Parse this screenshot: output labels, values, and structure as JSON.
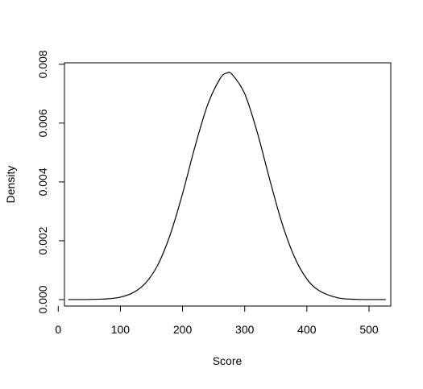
{
  "chart_data": {
    "type": "line",
    "title": "",
    "xlabel": "Score",
    "ylabel": "Density",
    "xlim": [
      10,
      535
    ],
    "ylim": [
      -0.00022,
      0.00805
    ],
    "x_ticks": [
      0,
      100,
      200,
      300,
      400,
      500
    ],
    "x_tick_labels": [
      "0",
      "100",
      "200",
      "300",
      "400",
      "500"
    ],
    "y_ticks": [
      0.0,
      0.002,
      0.004,
      0.006,
      0.008
    ],
    "y_tick_labels": [
      "0.000",
      "0.002",
      "0.004",
      "0.006",
      "0.008"
    ],
    "grid": false,
    "legend": "none",
    "series": [
      {
        "color": "#000000",
        "x": [
          16,
          50,
          80,
          100,
          120,
          140,
          160,
          180,
          200,
          220,
          240,
          260,
          271,
          280,
          300,
          320,
          340,
          360,
          380,
          400,
          420,
          450,
          480,
          527
        ],
        "y": [
          3e-07,
          4e-06,
          2.7e-05,
          8.3e-05,
          0.00023,
          0.00055,
          0.00117,
          0.0022,
          0.0036,
          0.0052,
          0.0066,
          0.0075,
          0.0077,
          0.00765,
          0.007,
          0.0057,
          0.0041,
          0.0026,
          0.00145,
          0.0007,
          0.0003,
          6e-05,
          8e-06,
          1e-07
        ]
      }
    ]
  }
}
